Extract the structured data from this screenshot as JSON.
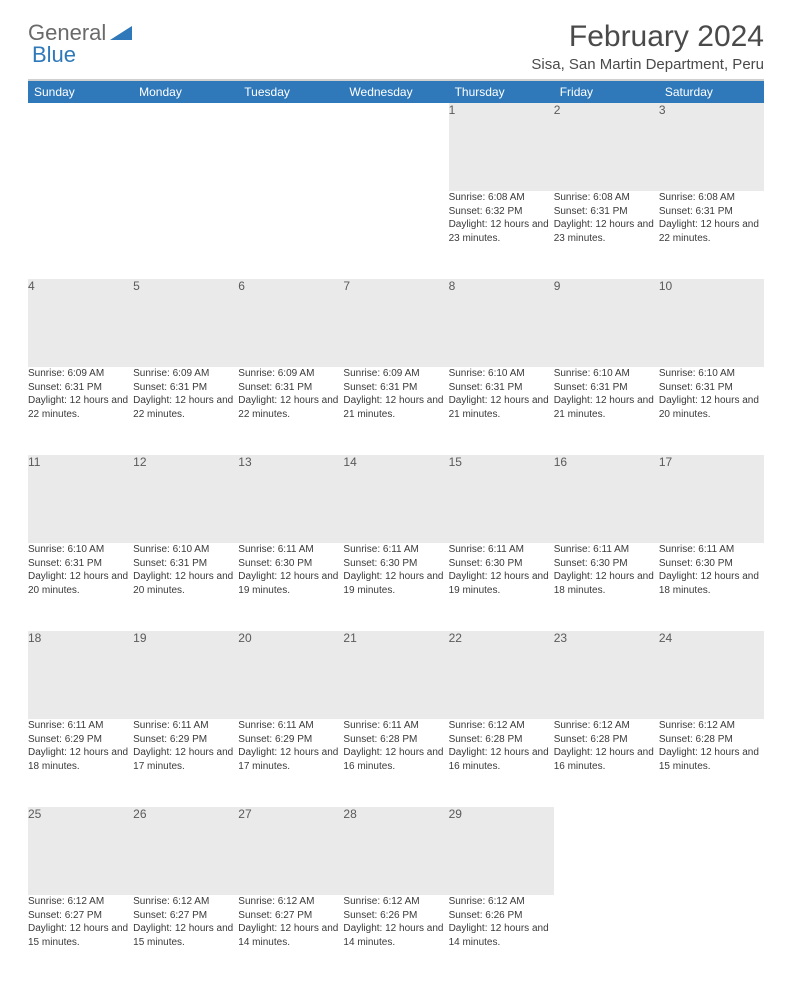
{
  "logo": {
    "text1": "General",
    "text2": "Blue",
    "triangle_color": "#2f79ba"
  },
  "title": "February 2024",
  "location": "Sisa, San Martin Department, Peru",
  "colors": {
    "header_bg": "#2f79ba",
    "header_text": "#ffffff",
    "daynum_bg": "#eaeaea",
    "border": "#c7c7c7",
    "background": "#ffffff",
    "text": "#3a3a3a"
  },
  "typography": {
    "title_fontsize": 30,
    "location_fontsize": 15,
    "header_cell_fontsize": 12,
    "daynum_fontsize": 12,
    "body_fontsize": 10
  },
  "day_labels": [
    "Sunday",
    "Monday",
    "Tuesday",
    "Wednesday",
    "Thursday",
    "Friday",
    "Saturday"
  ],
  "weeks": [
    [
      null,
      null,
      null,
      null,
      {
        "n": "1",
        "sunrise": "6:08 AM",
        "sunset": "6:32 PM",
        "daylight": "12 hours and 23 minutes."
      },
      {
        "n": "2",
        "sunrise": "6:08 AM",
        "sunset": "6:31 PM",
        "daylight": "12 hours and 23 minutes."
      },
      {
        "n": "3",
        "sunrise": "6:08 AM",
        "sunset": "6:31 PM",
        "daylight": "12 hours and 22 minutes."
      }
    ],
    [
      {
        "n": "4",
        "sunrise": "6:09 AM",
        "sunset": "6:31 PM",
        "daylight": "12 hours and 22 minutes."
      },
      {
        "n": "5",
        "sunrise": "6:09 AM",
        "sunset": "6:31 PM",
        "daylight": "12 hours and 22 minutes."
      },
      {
        "n": "6",
        "sunrise": "6:09 AM",
        "sunset": "6:31 PM",
        "daylight": "12 hours and 22 minutes."
      },
      {
        "n": "7",
        "sunrise": "6:09 AM",
        "sunset": "6:31 PM",
        "daylight": "12 hours and 21 minutes."
      },
      {
        "n": "8",
        "sunrise": "6:10 AM",
        "sunset": "6:31 PM",
        "daylight": "12 hours and 21 minutes."
      },
      {
        "n": "9",
        "sunrise": "6:10 AM",
        "sunset": "6:31 PM",
        "daylight": "12 hours and 21 minutes."
      },
      {
        "n": "10",
        "sunrise": "6:10 AM",
        "sunset": "6:31 PM",
        "daylight": "12 hours and 20 minutes."
      }
    ],
    [
      {
        "n": "11",
        "sunrise": "6:10 AM",
        "sunset": "6:31 PM",
        "daylight": "12 hours and 20 minutes."
      },
      {
        "n": "12",
        "sunrise": "6:10 AM",
        "sunset": "6:31 PM",
        "daylight": "12 hours and 20 minutes."
      },
      {
        "n": "13",
        "sunrise": "6:11 AM",
        "sunset": "6:30 PM",
        "daylight": "12 hours and 19 minutes."
      },
      {
        "n": "14",
        "sunrise": "6:11 AM",
        "sunset": "6:30 PM",
        "daylight": "12 hours and 19 minutes."
      },
      {
        "n": "15",
        "sunrise": "6:11 AM",
        "sunset": "6:30 PM",
        "daylight": "12 hours and 19 minutes."
      },
      {
        "n": "16",
        "sunrise": "6:11 AM",
        "sunset": "6:30 PM",
        "daylight": "12 hours and 18 minutes."
      },
      {
        "n": "17",
        "sunrise": "6:11 AM",
        "sunset": "6:30 PM",
        "daylight": "12 hours and 18 minutes."
      }
    ],
    [
      {
        "n": "18",
        "sunrise": "6:11 AM",
        "sunset": "6:29 PM",
        "daylight": "12 hours and 18 minutes."
      },
      {
        "n": "19",
        "sunrise": "6:11 AM",
        "sunset": "6:29 PM",
        "daylight": "12 hours and 17 minutes."
      },
      {
        "n": "20",
        "sunrise": "6:11 AM",
        "sunset": "6:29 PM",
        "daylight": "12 hours and 17 minutes."
      },
      {
        "n": "21",
        "sunrise": "6:11 AM",
        "sunset": "6:28 PM",
        "daylight": "12 hours and 16 minutes."
      },
      {
        "n": "22",
        "sunrise": "6:12 AM",
        "sunset": "6:28 PM",
        "daylight": "12 hours and 16 minutes."
      },
      {
        "n": "23",
        "sunrise": "6:12 AM",
        "sunset": "6:28 PM",
        "daylight": "12 hours and 16 minutes."
      },
      {
        "n": "24",
        "sunrise": "6:12 AM",
        "sunset": "6:28 PM",
        "daylight": "12 hours and 15 minutes."
      }
    ],
    [
      {
        "n": "25",
        "sunrise": "6:12 AM",
        "sunset": "6:27 PM",
        "daylight": "12 hours and 15 minutes."
      },
      {
        "n": "26",
        "sunrise": "6:12 AM",
        "sunset": "6:27 PM",
        "daylight": "12 hours and 15 minutes."
      },
      {
        "n": "27",
        "sunrise": "6:12 AM",
        "sunset": "6:27 PM",
        "daylight": "12 hours and 14 minutes."
      },
      {
        "n": "28",
        "sunrise": "6:12 AM",
        "sunset": "6:26 PM",
        "daylight": "12 hours and 14 minutes."
      },
      {
        "n": "29",
        "sunrise": "6:12 AM",
        "sunset": "6:26 PM",
        "daylight": "12 hours and 14 minutes."
      },
      null,
      null
    ]
  ]
}
